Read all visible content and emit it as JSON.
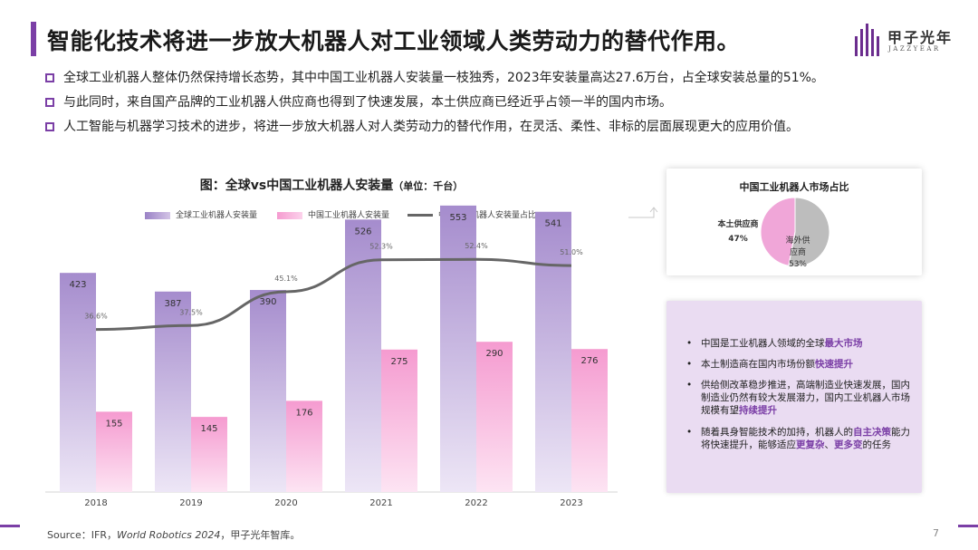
{
  "header": {
    "title": "智能化技术将进一步放大机器人对工业领域人类劳动力的替代作用。",
    "logo_cn": "甲子光年",
    "logo_en": "JAZZYEAR"
  },
  "bullets": [
    "全球工业机器人整体仍然保持增长态势，其中中国工业机器人安装量一枝独秀，2023年安装量高达27.6万台，占全球安装总量的51%。",
    "与此同时，来自国产品牌的工业机器人供应商也得到了快速发展，本土供应商已经近乎占领一半的国内市场。",
    "人工智能与机器学习技术的进步，将进一步放大机器人对人类劳动力的替代作用，在灵活、柔性、非标的层面展现更大的应用价值。"
  ],
  "chart_data": {
    "type": "bar",
    "title": "图：全球vs中国工业机器人安装量",
    "title_unit": "（单位：千台）",
    "categories": [
      "2018",
      "2019",
      "2020",
      "2021",
      "2022",
      "2023"
    ],
    "series": [
      {
        "name": "全球工业机器人安装量",
        "kind": "bar",
        "color": "#b9a3d6",
        "values": [
          423,
          387,
          390,
          526,
          553,
          541
        ]
      },
      {
        "name": "中国工业机器人安装量",
        "kind": "bar",
        "color": "#f5a6d6",
        "values": [
          155,
          145,
          176,
          275,
          290,
          276
        ]
      },
      {
        "name": "中国工业机器人安装量占比",
        "kind": "line",
        "color": "#666666",
        "values": [
          36.6,
          37.5,
          45.1,
          52.3,
          52.4,
          51.0
        ],
        "labels": [
          "36.6%",
          "37.5%",
          "45.1%",
          "52.3%",
          "52.4%",
          "51.0%"
        ]
      }
    ],
    "ylim": [
      0,
      600
    ],
    "y2lim": [
      0,
      70
    ],
    "legend": "top",
    "grid": false
  },
  "pie": {
    "title": "中国工业机器人市场占比",
    "slices": [
      {
        "label": "本土供应商",
        "pct": "47%",
        "value": 47,
        "color": "#f0a6d8"
      },
      {
        "label": "海外供应商",
        "pct": "53%",
        "value": 53,
        "color": "#bdbdbd"
      }
    ]
  },
  "insights": {
    "i1": {
      "a": "中国是工业机器人领域的全球",
      "b": "最大市场"
    },
    "i2": {
      "a": "本土制造商在国内市场份额",
      "b": "快速提升"
    },
    "i3": {
      "a": "供给侧改革稳步推进，高端制造业快速发展，国内制造业仍然有较大发展潜力，国内工业机器人市场规模有望",
      "b": "持续提升"
    },
    "i4": {
      "a": "随着具身智能技术的加持，机器人的",
      "b": "自主决策",
      "c": "能力将快速提升，能够适应",
      "d": "更复杂",
      "e": "、",
      "f": "更多变",
      "g": "的任务"
    }
  },
  "footer": {
    "source_a": "Source：IFR，",
    "source_b": "World Robotics 2024",
    "source_c": "，甲子光年智库。",
    "page": "7"
  },
  "colors": {
    "accent": "#7b3fa6",
    "bar_global": "#b9a3d6",
    "bar_china": "#f5a6d6"
  }
}
